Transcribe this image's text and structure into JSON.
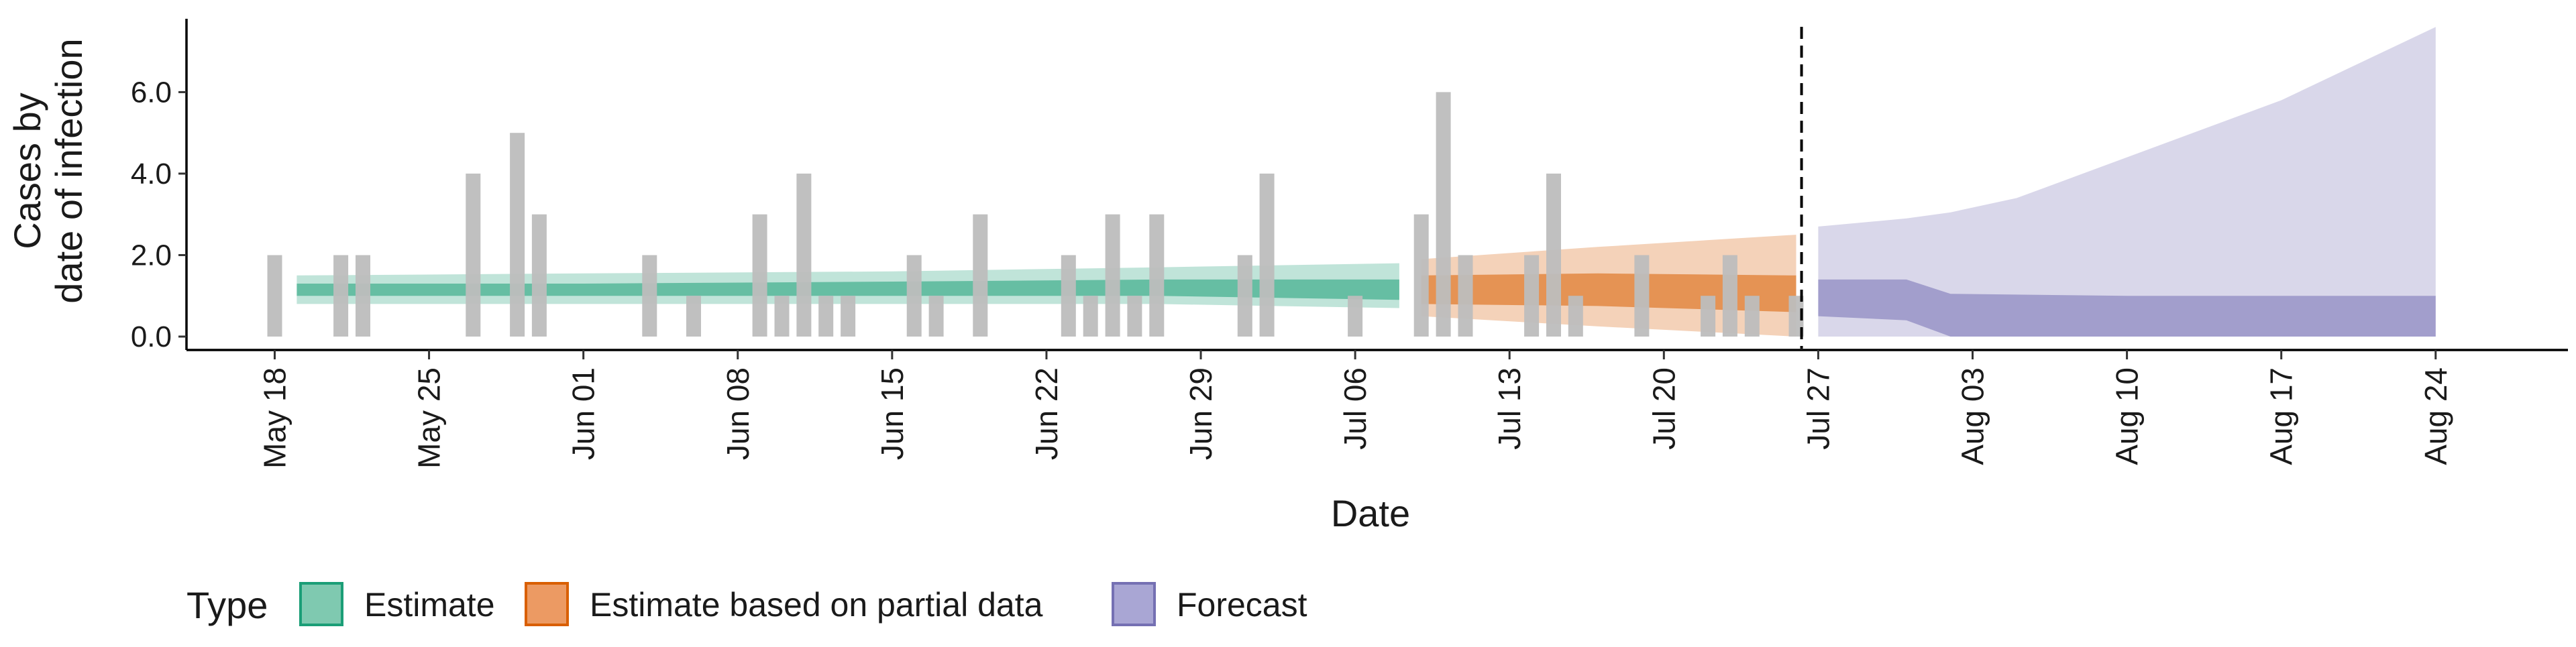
{
  "chart_data": {
    "type": "bar",
    "xlabel": "Date",
    "ylabel": [
      "Cases by",
      "date of infection"
    ],
    "ylim": [
      0,
      7.8
    ],
    "y_ticks": [
      "0.0",
      "2.0",
      "4.0",
      "6.0"
    ],
    "x_range": [
      "2020-05-14",
      "2020-08-30"
    ],
    "x_ticks": [
      {
        "date": "2020-05-18",
        "label": "May 18"
      },
      {
        "date": "2020-05-25",
        "label": "May 25"
      },
      {
        "date": "2020-06-01",
        "label": "Jun 01"
      },
      {
        "date": "2020-06-08",
        "label": "Jun 08"
      },
      {
        "date": "2020-06-15",
        "label": "Jun 15"
      },
      {
        "date": "2020-06-22",
        "label": "Jun 22"
      },
      {
        "date": "2020-06-29",
        "label": "Jun 29"
      },
      {
        "date": "2020-07-06",
        "label": "Jul 06"
      },
      {
        "date": "2020-07-13",
        "label": "Jul 13"
      },
      {
        "date": "2020-07-20",
        "label": "Jul 20"
      },
      {
        "date": "2020-07-27",
        "label": "Jul 27"
      },
      {
        "date": "2020-08-03",
        "label": "Aug 03"
      },
      {
        "date": "2020-08-10",
        "label": "Aug 10"
      },
      {
        "date": "2020-08-17",
        "label": "Aug 17"
      },
      {
        "date": "2020-08-24",
        "label": "Aug 24"
      }
    ],
    "reported_cases": [
      {
        "date": "2020-05-18",
        "value": 2
      },
      {
        "date": "2020-05-21",
        "value": 2
      },
      {
        "date": "2020-05-22",
        "value": 2
      },
      {
        "date": "2020-05-27",
        "value": 4
      },
      {
        "date": "2020-05-29",
        "value": 5
      },
      {
        "date": "2020-05-30",
        "value": 3
      },
      {
        "date": "2020-06-04",
        "value": 2
      },
      {
        "date": "2020-06-06",
        "value": 1
      },
      {
        "date": "2020-06-09",
        "value": 3
      },
      {
        "date": "2020-06-10",
        "value": 1
      },
      {
        "date": "2020-06-11",
        "value": 4
      },
      {
        "date": "2020-06-12",
        "value": 1
      },
      {
        "date": "2020-06-13",
        "value": 1
      },
      {
        "date": "2020-06-16",
        "value": 2
      },
      {
        "date": "2020-06-17",
        "value": 1
      },
      {
        "date": "2020-06-19",
        "value": 3
      },
      {
        "date": "2020-06-23",
        "value": 2
      },
      {
        "date": "2020-06-24",
        "value": 1
      },
      {
        "date": "2020-06-25",
        "value": 3
      },
      {
        "date": "2020-06-26",
        "value": 1
      },
      {
        "date": "2020-06-27",
        "value": 3
      },
      {
        "date": "2020-07-01",
        "value": 2
      },
      {
        "date": "2020-07-02",
        "value": 4
      },
      {
        "date": "2020-07-06",
        "value": 1
      },
      {
        "date": "2020-07-09",
        "value": 3
      },
      {
        "date": "2020-07-10",
        "value": 6
      },
      {
        "date": "2020-07-11",
        "value": 2
      },
      {
        "date": "2020-07-14",
        "value": 2
      },
      {
        "date": "2020-07-15",
        "value": 4
      },
      {
        "date": "2020-07-16",
        "value": 1
      },
      {
        "date": "2020-07-19",
        "value": 2
      },
      {
        "date": "2020-07-22",
        "value": 1
      },
      {
        "date": "2020-07-23",
        "value": 2
      },
      {
        "date": "2020-07-24",
        "value": 1
      },
      {
        "date": "2020-07-26",
        "value": 1
      }
    ],
    "forecast_start": "2020-07-26",
    "series": [
      {
        "name": "Estimate",
        "color": "#1b9e77",
        "points": [
          {
            "date": "2020-05-19",
            "lower90": 0.8,
            "upper90": 1.5,
            "lower50": 1.0,
            "upper50": 1.3
          },
          {
            "date": "2020-06-01",
            "lower90": 0.8,
            "upper90": 1.55,
            "lower50": 1.0,
            "upper50": 1.3
          },
          {
            "date": "2020-06-15",
            "lower90": 0.8,
            "upper90": 1.6,
            "lower50": 1.0,
            "upper50": 1.35
          },
          {
            "date": "2020-06-27",
            "lower90": 0.8,
            "upper90": 1.7,
            "lower50": 1.0,
            "upper50": 1.4
          },
          {
            "date": "2020-07-08",
            "lower90": 0.7,
            "upper90": 1.8,
            "lower50": 0.9,
            "upper50": 1.4
          }
        ]
      },
      {
        "name": "Estimate based on partial data",
        "color": "#d95f02",
        "points": [
          {
            "date": "2020-07-09",
            "lower90": 0.5,
            "upper90": 1.9,
            "lower50": 0.8,
            "upper50": 1.5
          },
          {
            "date": "2020-07-17",
            "lower90": 0.25,
            "upper90": 2.2,
            "lower50": 0.75,
            "upper50": 1.55
          },
          {
            "date": "2020-07-26",
            "lower90": 0.0,
            "upper90": 2.5,
            "lower50": 0.6,
            "upper50": 1.5
          }
        ]
      },
      {
        "name": "Forecast",
        "color": "#7570b3",
        "points": [
          {
            "date": "2020-07-27",
            "lower90": 0.0,
            "upper90": 2.7,
            "lower50": 0.5,
            "upper50": 1.4
          },
          {
            "date": "2020-07-31",
            "lower90": 0.0,
            "upper90": 2.9,
            "lower50": 0.4,
            "upper50": 1.4
          },
          {
            "date": "2020-08-02",
            "lower90": 0.0,
            "upper90": 3.05,
            "lower50": 0.0,
            "upper50": 1.05
          },
          {
            "date": "2020-08-05",
            "lower90": 0.0,
            "upper90": 3.4,
            "lower50": 0.0,
            "upper50": 1.03
          },
          {
            "date": "2020-08-10",
            "lower90": 0.0,
            "upper90": 4.4,
            "lower50": 0.0,
            "upper50": 1.0
          },
          {
            "date": "2020-08-17",
            "lower90": 0.0,
            "upper90": 5.8,
            "lower50": 0.0,
            "upper50": 1.0
          },
          {
            "date": "2020-08-24",
            "lower90": 0.0,
            "upper90": 7.6,
            "lower50": 0.0,
            "upper50": 1.0
          }
        ]
      }
    ],
    "legend": {
      "title": "Type",
      "position": "bottom",
      "entries": [
        {
          "label": "Estimate",
          "fill": "#7fc9b0",
          "stroke": "#1b9e77"
        },
        {
          "label": "Estimate based on partial data",
          "fill": "#ec9a63",
          "stroke": "#d95f02"
        },
        {
          "label": "Forecast",
          "fill": "#a9a6d4",
          "stroke": "#7570b3"
        }
      ]
    },
    "bar_color": "#bdbdbd",
    "grid": false
  }
}
